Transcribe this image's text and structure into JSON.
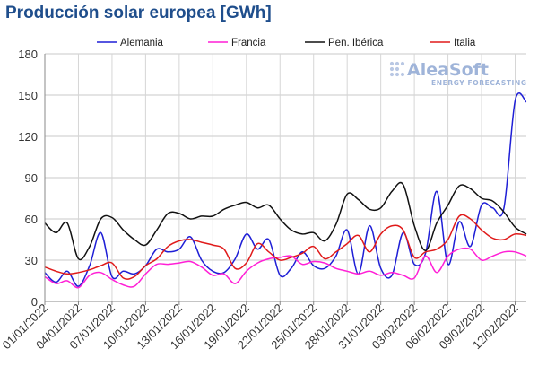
{
  "chart_data": {
    "type": "line",
    "title": "Producción solar europea [GWh]",
    "xlabel": "",
    "ylabel": "",
    "ylim": [
      0,
      180
    ],
    "yticks": [
      0,
      30,
      60,
      90,
      120,
      150,
      180
    ],
    "grid": true,
    "legend_position": "top",
    "x_tick_labels": [
      "01/01/2022",
      "04/01/2022",
      "07/01/2022",
      "10/01/2022",
      "13/01/2022",
      "16/01/2022",
      "19/01/2022",
      "22/01/2022",
      "25/01/2022",
      "28/01/2022",
      "31/01/2022",
      "03/02/2022",
      "06/02/2022",
      "09/02/2022",
      "12/02/2022"
    ],
    "x": [
      "01/01/2022",
      "02/01/2022",
      "03/01/2022",
      "04/01/2022",
      "05/01/2022",
      "06/01/2022",
      "07/01/2022",
      "08/01/2022",
      "09/01/2022",
      "10/01/2022",
      "11/01/2022",
      "12/01/2022",
      "13/01/2022",
      "14/01/2022",
      "15/01/2022",
      "16/01/2022",
      "17/01/2022",
      "18/01/2022",
      "19/01/2022",
      "20/01/2022",
      "21/01/2022",
      "22/01/2022",
      "23/01/2022",
      "24/01/2022",
      "25/01/2022",
      "26/01/2022",
      "27/01/2022",
      "28/01/2022",
      "29/01/2022",
      "30/01/2022",
      "31/01/2022",
      "01/02/2022",
      "02/02/2022",
      "03/02/2022",
      "04/02/2022",
      "05/02/2022",
      "06/02/2022",
      "07/02/2022",
      "08/02/2022",
      "09/02/2022",
      "10/02/2022",
      "11/02/2022",
      "12/02/2022",
      "13/02/2022"
    ],
    "series": [
      {
        "name": "Alemania",
        "color": "#1f1fd6",
        "values": [
          21,
          14,
          22,
          11,
          26,
          50,
          18,
          22,
          20,
          26,
          38,
          36,
          38,
          47,
          30,
          22,
          21,
          31,
          49,
          38,
          45,
          19,
          24,
          36,
          26,
          24,
          33,
          52,
          20,
          55,
          24,
          19,
          50,
          27,
          35,
          80,
          27,
          58,
          40,
          70,
          68,
          68,
          146,
          145
        ]
      },
      {
        "name": "Francia",
        "color": "#ff1fd6",
        "values": [
          18,
          13,
          15,
          10,
          19,
          21,
          16,
          12,
          11,
          20,
          27,
          27,
          28,
          29,
          25,
          19,
          20,
          13,
          22,
          28,
          31,
          32,
          33,
          27,
          29,
          28,
          24,
          22,
          20,
          22,
          19,
          21,
          19,
          17,
          33,
          21,
          33,
          38,
          38,
          30,
          33,
          36,
          36,
          33
        ]
      },
      {
        "name": "Pen. Ibérica",
        "color": "#111111",
        "values": [
          57,
          50,
          57,
          31,
          40,
          60,
          61,
          52,
          45,
          41,
          52,
          64,
          64,
          60,
          62,
          62,
          67,
          70,
          72,
          68,
          70,
          60,
          52,
          49,
          50,
          44,
          56,
          78,
          74,
          67,
          68,
          80,
          85,
          55,
          37,
          57,
          70,
          84,
          82,
          75,
          73,
          65,
          54,
          49
        ]
      },
      {
        "name": "Italia",
        "color": "#e01a1a",
        "values": [
          25,
          22,
          20,
          21,
          23,
          26,
          28,
          17,
          18,
          26,
          31,
          40,
          44,
          45,
          43,
          41,
          38,
          24,
          28,
          42,
          36,
          30,
          32,
          35,
          40,
          31,
          36,
          42,
          48,
          36,
          49,
          55,
          52,
          32,
          36,
          38,
          45,
          62,
          60,
          52,
          46,
          45,
          49,
          48
        ]
      }
    ]
  },
  "logo": {
    "name": "AleaSoft",
    "tagline": "ENERGY FORECASTING"
  }
}
